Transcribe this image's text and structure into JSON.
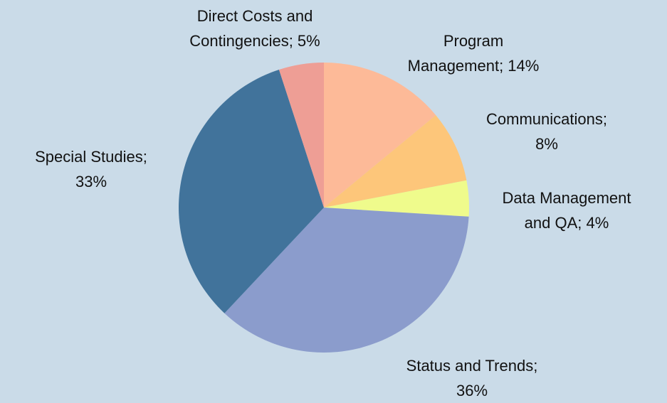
{
  "chart_data": {
    "type": "pie",
    "categories": [
      "Program Management",
      "Communications",
      "Data Management and QA",
      "Status and Trends",
      "Special Studies",
      "Direct Costs and Contingencies"
    ],
    "values": [
      14,
      8,
      4,
      36,
      33,
      5
    ],
    "value_labels": [
      "Program Management; 14%",
      "Communications; 8%",
      "Data Management and QA; 4%",
      "Status and Trends; 36%",
      "Special Studies; 33%",
      "Direct Costs and Contingencies; 5%"
    ],
    "colors": [
      "#fdba98",
      "#fdc67a",
      "#effb8c",
      "#8b9ccc",
      "#41739b",
      "#ee9e95"
    ]
  }
}
